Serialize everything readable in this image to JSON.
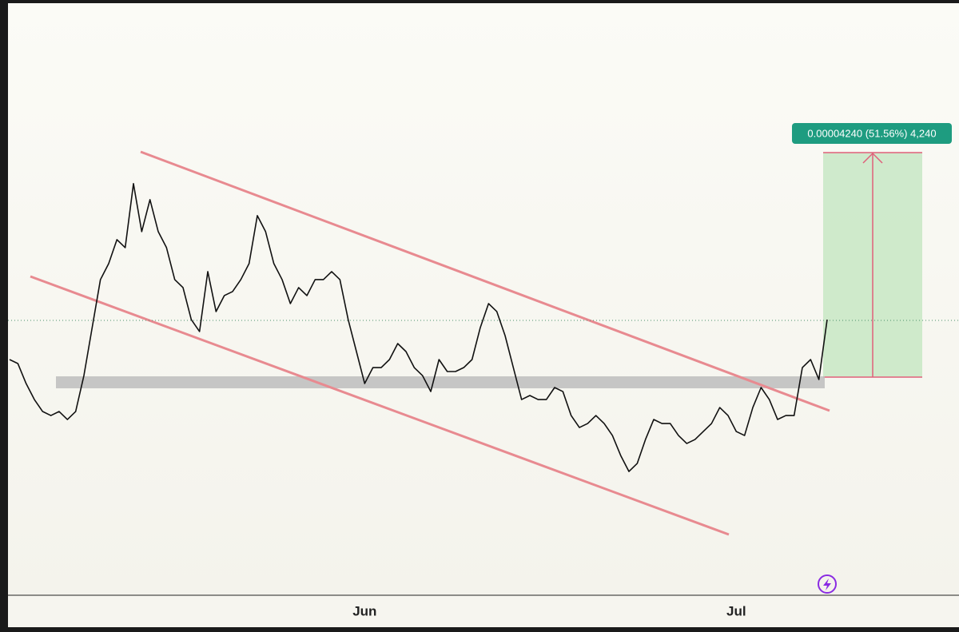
{
  "chart_data": {
    "type": "line",
    "annotation": "0.00004240 (51.56%) 4,240",
    "categories": [
      null,
      null,
      null,
      null,
      null,
      null,
      null,
      null,
      null,
      null,
      null,
      null,
      null,
      null,
      null,
      null,
      null,
      null,
      null,
      null,
      null,
      null,
      null,
      null,
      null,
      null,
      null,
      null,
      null,
      null,
      null,
      null,
      null,
      null,
      null,
      null,
      null,
      null,
      null,
      null,
      null,
      null,
      null,
      "Jun",
      null,
      null,
      null,
      null,
      null,
      null,
      null,
      null,
      null,
      null,
      null,
      null,
      null,
      null,
      null,
      null,
      null,
      null,
      null,
      null,
      null,
      null,
      null,
      null,
      null,
      null,
      null,
      null,
      null,
      null,
      null,
      null,
      null,
      null,
      null,
      null,
      null,
      null,
      null,
      null,
      null,
      null,
      null,
      null,
      "Jul",
      null,
      null,
      null,
      null,
      null,
      null,
      null,
      null,
      null,
      null,
      null
    ],
    "series": [
      {
        "color": "#111111",
        "values": [
          8.556e-05,
          8.481e-05,
          8.103e-05,
          7.801e-05,
          7.575e-05,
          7.499e-05,
          7.575e-05,
          7.424e-05,
          7.575e-05,
          8.254e-05,
          9.16e-05,
          0.00010066,
          0.00010368,
          0.00010821,
          0.0001067,
          0.00011878,
          0.00010972,
          0.00011576,
          0.00010972,
          0.0001067,
          0.00010066,
          9.915e-05,
          9.311e-05,
          9.085e-05,
          0.00010217,
          9.462e-05,
          9.764e-05,
          9.84e-05,
          0.00010066,
          0.00010368,
          0.00011274,
          0.00010972,
          0.00010368,
          0.00010066,
          9.613e-05,
          9.915e-05,
          9.764e-05,
          0.00010066,
          0.00010066,
          0.00010217,
          0.00010066,
          9.311e-05,
          8.707e-05,
          8.103e-05,
          8.405e-05,
          8.405e-05,
          8.556e-05,
          8.858e-05,
          8.707e-05,
          8.405e-05,
          8.254e-05,
          7.952e-05,
          8.556e-05,
          8.33e-05,
          8.33e-05,
          8.405e-05,
          8.556e-05,
          9.16e-05,
          9.613e-05,
          9.462e-05,
          9.009e-05,
          8.405e-05,
          7.801e-05,
          7.877e-05,
          7.801e-05,
          7.801e-05,
          8.028e-05,
          7.952e-05,
          7.499e-05,
          7.273e-05,
          7.348e-05,
          7.499e-05,
          7.348e-05,
          7.122e-05,
          6.744e-05,
          6.442e-05,
          6.593e-05,
          7.046e-05,
          7.424e-05,
          7.348e-05,
          7.348e-05,
          7.122e-05,
          6.971e-05,
          7.046e-05,
          7.197e-05,
          7.348e-05,
          7.65e-05,
          7.499e-05,
          7.197e-05,
          7.122e-05,
          7.65e-05,
          8.028e-05,
          7.801e-05,
          7.424e-05,
          7.499e-05,
          7.499e-05,
          8.405e-05,
          8.556e-05,
          8.179e-05,
          9.311e-05
        ]
      }
    ],
    "ylim": [
      4.105e-05,
      0.00015346
    ]
  }
}
